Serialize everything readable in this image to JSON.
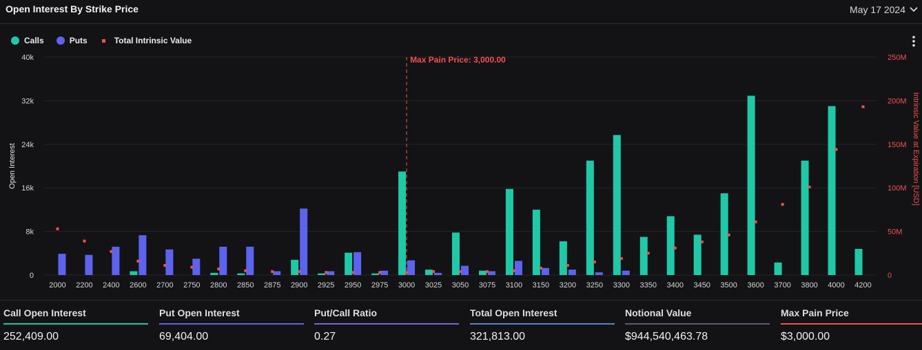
{
  "header": {
    "title": "Open Interest By Strike Price",
    "date": "May 17 2024"
  },
  "legend": {
    "calls_label": "Calls",
    "puts_label": "Puts",
    "intrinsic_label": "Total Intrinsic Value"
  },
  "colors": {
    "calls": "#1fc9a7",
    "puts": "#5d63ee",
    "intrinsic": "#f2504f",
    "open_interest_bar": "#5a82c9",
    "notional_bar": "#5a5f6e"
  },
  "chart_data": {
    "type": "bar",
    "categories": [
      "2000",
      "2200",
      "2400",
      "2600",
      "2700",
      "2750",
      "2800",
      "2850",
      "2875",
      "2900",
      "2925",
      "2950",
      "2975",
      "3000",
      "3025",
      "3050",
      "3075",
      "3100",
      "3150",
      "3200",
      "3250",
      "3300",
      "3350",
      "3400",
      "3450",
      "3500",
      "3600",
      "3700",
      "3800",
      "4000",
      "4200"
    ],
    "series": [
      {
        "name": "Calls",
        "axis": "left",
        "kind": "bar",
        "values": [
          0,
          0,
          0,
          700,
          0,
          0,
          400,
          300,
          0,
          2800,
          300,
          4100,
          300,
          19000,
          1000,
          7800,
          800,
          15800,
          12000,
          6200,
          21000,
          25700,
          7000,
          10800,
          7400,
          15000,
          32900,
          2300,
          21000,
          31000,
          4800
        ]
      },
      {
        "name": "Puts",
        "axis": "left",
        "kind": "bar",
        "values": [
          3900,
          3700,
          5200,
          7300,
          4700,
          3000,
          5200,
          5200,
          700,
          12200,
          700,
          4200,
          800,
          2700,
          400,
          1700,
          700,
          2600,
          1300,
          1000,
          500,
          800,
          0,
          0,
          0,
          0,
          0,
          0,
          0,
          0,
          0
        ]
      },
      {
        "name": "Total Intrinsic Value",
        "axis": "right",
        "kind": "point",
        "values": [
          53000000,
          39000000,
          27000000,
          16000000,
          11000000,
          9000000,
          7000000,
          5000000,
          4000000,
          4000000,
          3000000,
          3000000,
          3000000,
          3000000,
          4000000,
          4000000,
          4000000,
          5000000,
          8000000,
          11000000,
          15000000,
          19000000,
          25000000,
          31000000,
          38000000,
          46000000,
          61000000,
          81000000,
          101000000,
          144000000,
          193000000
        ]
      }
    ],
    "ylabel": "Open Interest",
    "y2label": "Intrinsic Value at Expiration [USD]",
    "ylim": [
      0,
      40000
    ],
    "y2lim": [
      0,
      250000000
    ],
    "yticks": [
      "0",
      "8k",
      "16k",
      "24k",
      "32k",
      "40k"
    ],
    "y2ticks": [
      "0",
      "50M",
      "100M",
      "150M",
      "200M",
      "250M"
    ],
    "max_pain": {
      "label": "Max Pain Price: 3,000.00",
      "category": "3000"
    },
    "grid": true,
    "legend_position": "top-left"
  },
  "stats": [
    {
      "label": "Call Open Interest",
      "value": "252,409.00",
      "color": "#1fc9a7"
    },
    {
      "label": "Put Open Interest",
      "value": "69,404.00",
      "color": "#5d63ee"
    },
    {
      "label": "Put/Call Ratio",
      "value": "0.27",
      "color": "#7b63d9"
    },
    {
      "label": "Total Open Interest",
      "value": "321,813.00",
      "color": "#5a82c9"
    },
    {
      "label": "Notional Value",
      "value": "$944,540,463.78",
      "color": "#5a5f6e"
    },
    {
      "label": "Max Pain Price",
      "value": "$3,000.00",
      "color": "#f2504f"
    }
  ]
}
